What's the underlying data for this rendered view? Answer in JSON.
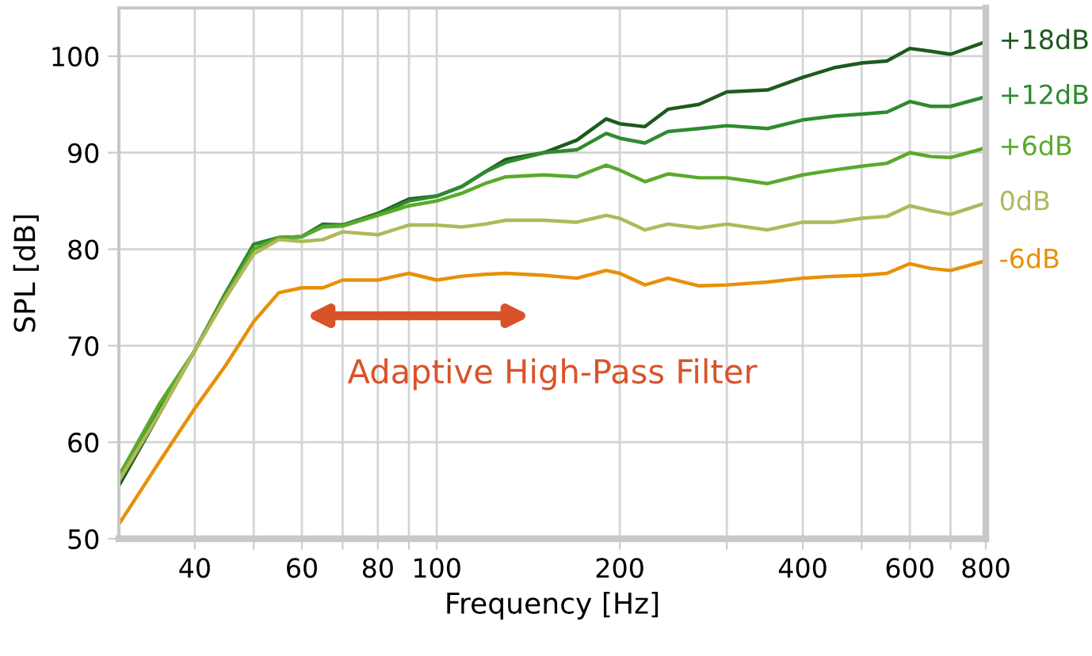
{
  "chart_data": {
    "type": "line",
    "xlabel": "Frequency [Hz]",
    "ylabel": "SPL [dB]",
    "log": "x",
    "grid": true,
    "legend": false,
    "marker": "none",
    "line_style": "solid",
    "xlim": [
      30,
      800
    ],
    "ylim": [
      50,
      105
    ],
    "xticks": [
      40,
      {
        "value": 50,
        "label": null
      },
      60,
      {
        "value": 70,
        "label": null
      },
      80,
      {
        "value": 90,
        "label": null
      },
      100,
      200,
      {
        "value": 300,
        "label": null
      },
      400,
      {
        "value": 500,
        "label": null
      },
      600,
      {
        "value": 700,
        "label": null
      },
      800
    ],
    "yticks": [
      50,
      60,
      70,
      80,
      90,
      100
    ],
    "x": [
      30,
      35,
      40,
      45,
      50,
      55,
      60,
      65,
      70,
      80,
      90,
      100,
      110,
      120,
      130,
      150,
      170,
      190,
      200,
      220,
      240,
      270,
      300,
      350,
      400,
      450,
      500,
      550,
      600,
      650,
      700,
      800
    ],
    "series": [
      {
        "name": "+18dB",
        "color": "#1e5a1e",
        "values": [
          55.5,
          63,
          69.5,
          75.5,
          80.5,
          81.2,
          81.3,
          82.6,
          82.5,
          83.7,
          85.2,
          85.5,
          86.5,
          88,
          89.3,
          90,
          91.3,
          93.5,
          93,
          92.7,
          94.5,
          95,
          96.3,
          96.5,
          97.8,
          98.8,
          99.3,
          99.5,
          100.8,
          100.5,
          100.2,
          101.5
        ]
      },
      {
        "name": "+12dB",
        "color": "#2e8b2e",
        "values": [
          56,
          63.5,
          69.5,
          75.5,
          80.5,
          81.2,
          81.3,
          82.5,
          82.5,
          83.6,
          85,
          85.5,
          86.5,
          88,
          89,
          90,
          90.3,
          92,
          91.5,
          91,
          92.2,
          92.5,
          92.8,
          92.5,
          93.4,
          93.8,
          94,
          94.2,
          95.3,
          94.8,
          94.8,
          95.8
        ]
      },
      {
        "name": "+6dB",
        "color": "#5aaa2a",
        "values": [
          56.5,
          64,
          69.5,
          75.3,
          80,
          81.2,
          81.3,
          82.3,
          82.4,
          83.5,
          84.5,
          85,
          85.8,
          86.8,
          87.5,
          87.7,
          87.5,
          88.7,
          88.2,
          87,
          87.8,
          87.4,
          87.4,
          86.8,
          87.7,
          88.2,
          88.6,
          88.9,
          90,
          89.6,
          89.5,
          90.5
        ]
      },
      {
        "name": "0dB",
        "color": "#b0b85a",
        "values": [
          56,
          63,
          69.5,
          75,
          79.5,
          81,
          80.8,
          81,
          81.8,
          81.5,
          82.5,
          82.5,
          82.3,
          82.6,
          83,
          83,
          82.8,
          83.5,
          83.2,
          82,
          82.6,
          82.2,
          82.6,
          82,
          82.8,
          82.8,
          83.2,
          83.4,
          84.5,
          84,
          83.6,
          84.8
        ]
      },
      {
        "name": "-6dB",
        "color": "#e8900a",
        "values": [
          51.5,
          58,
          63.5,
          68,
          72.5,
          75.5,
          76,
          76,
          76.8,
          76.8,
          77.5,
          76.8,
          77.2,
          77.4,
          77.5,
          77.3,
          77,
          77.8,
          77.5,
          76.3,
          77,
          76.2,
          76.3,
          76.6,
          77,
          77.2,
          77.3,
          77.5,
          78.5,
          78,
          77.8,
          78.8
        ]
      }
    ],
    "annotations": [
      "Adaptive High-Pass Filter"
    ]
  }
}
